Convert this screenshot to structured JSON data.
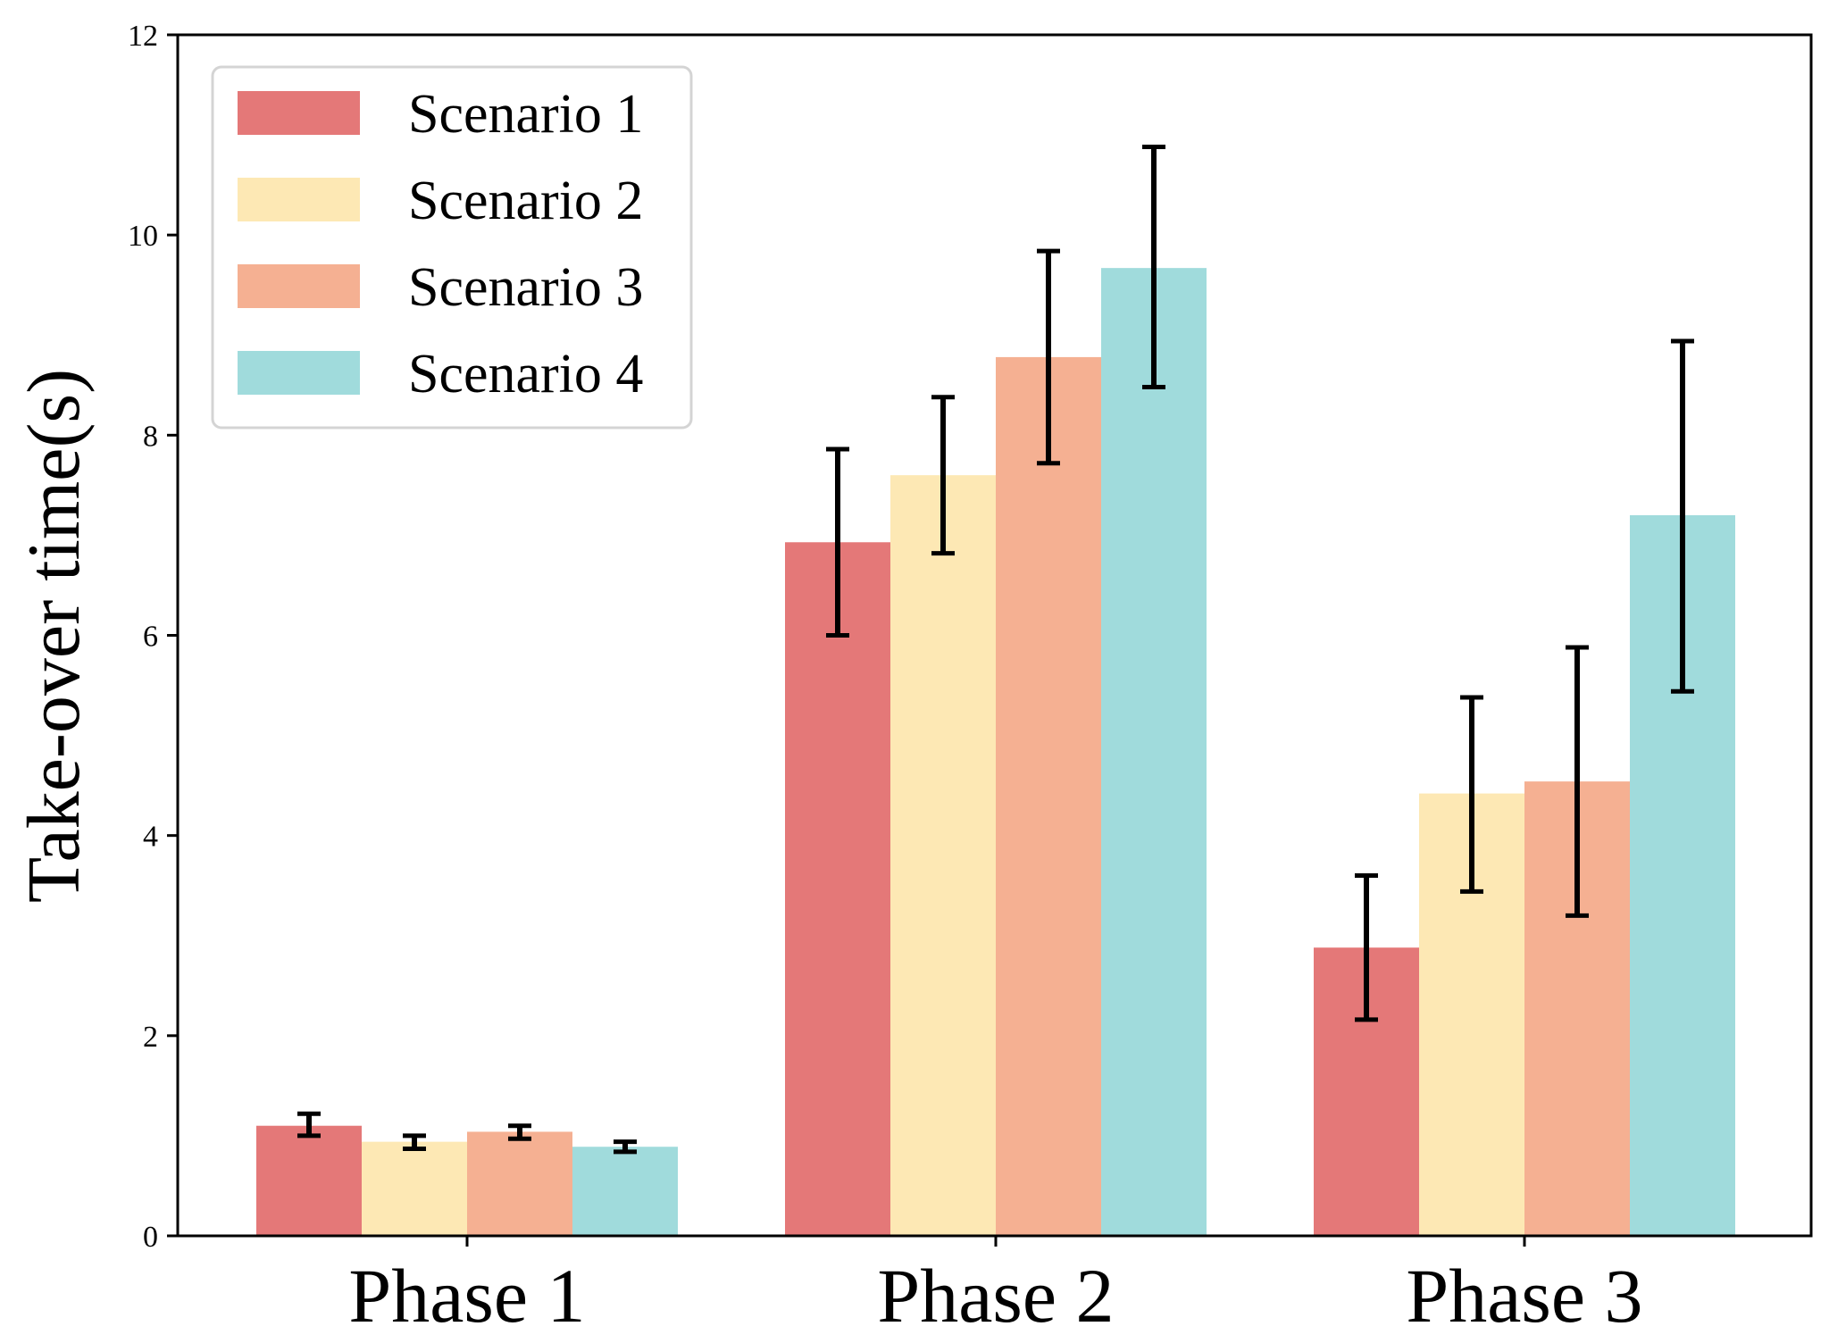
{
  "chart_data": {
    "type": "bar",
    "title": "",
    "xlabel": "",
    "ylabel": "Take-over time(s)",
    "ylim": [
      0,
      12
    ],
    "yticks": [
      "0",
      "2",
      "4",
      "6",
      "8",
      "10",
      "12"
    ],
    "grid": false,
    "legend_position": "top-left",
    "categories": [
      "Phase 1",
      "Phase 2",
      "Phase 3"
    ],
    "series": [
      {
        "name": "Scenario 1",
        "color": "#e47878",
        "values": [
          1.1,
          6.93,
          2.88
        ],
        "err_low": [
          1.0,
          6.0,
          2.16
        ],
        "err_high": [
          1.22,
          7.86,
          3.6
        ]
      },
      {
        "name": "Scenario 2",
        "color": "#fde8b4",
        "values": [
          0.94,
          7.6,
          4.42
        ],
        "err_low": [
          0.87,
          6.82,
          3.44
        ],
        "err_high": [
          1.0,
          8.38,
          5.38
        ]
      },
      {
        "name": "Scenario 3",
        "color": "#f5b092",
        "values": [
          1.04,
          8.78,
          4.54
        ],
        "err_low": [
          0.97,
          7.72,
          3.2
        ],
        "err_high": [
          1.1,
          9.84,
          5.88
        ]
      },
      {
        "name": "Scenario 4",
        "color": "#a0dbdc",
        "values": [
          0.89,
          9.67,
          7.2
        ],
        "err_low": [
          0.84,
          8.48,
          5.44
        ],
        "err_high": [
          0.94,
          10.88,
          8.94
        ]
      }
    ]
  }
}
